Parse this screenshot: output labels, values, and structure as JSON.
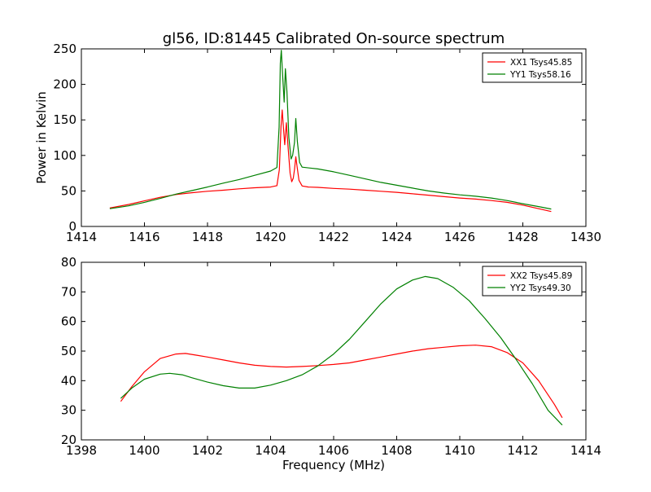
{
  "figure": {
    "title": "gl56, ID:81445 Calibrated On-source spectrum",
    "background": "#ffffff"
  },
  "chart_data": [
    {
      "type": "line",
      "title": "gl56, ID:81445 Calibrated On-source spectrum",
      "xlabel": "",
      "ylabel": "Power in Kelvin",
      "xlim": [
        1414,
        1430
      ],
      "ylim": [
        0,
        250
      ],
      "xticks": [
        1414,
        1416,
        1418,
        1420,
        1422,
        1424,
        1426,
        1428,
        1430
      ],
      "yticks": [
        0,
        50,
        100,
        150,
        200,
        250
      ],
      "grid": false,
      "legend_position": "top-right",
      "series": [
        {
          "name": "XX1 Tsys45.85",
          "color": "#ff0000",
          "points": [
            [
              1414.9,
              26
            ],
            [
              1415.5,
              31
            ],
            [
              1416.0,
              36
            ],
            [
              1416.5,
              41
            ],
            [
              1417.0,
              45
            ],
            [
              1417.5,
              47.5
            ],
            [
              1418.0,
              49.5
            ],
            [
              1418.5,
              51
            ],
            [
              1419.0,
              53
            ],
            [
              1419.5,
              54.5
            ],
            [
              1420.0,
              55.5
            ],
            [
              1420.2,
              57.5
            ],
            [
              1420.28,
              80
            ],
            [
              1420.33,
              140
            ],
            [
              1420.37,
              164
            ],
            [
              1420.41,
              138
            ],
            [
              1420.45,
              115
            ],
            [
              1420.5,
              146
            ],
            [
              1420.55,
              115
            ],
            [
              1420.62,
              75
            ],
            [
              1420.67,
              63
            ],
            [
              1420.72,
              68
            ],
            [
              1420.76,
              80
            ],
            [
              1420.8,
              98
            ],
            [
              1420.84,
              85
            ],
            [
              1420.9,
              65
            ],
            [
              1421.0,
              57
            ],
            [
              1421.2,
              55.5
            ],
            [
              1421.5,
              55
            ],
            [
              1422.0,
              53.5
            ],
            [
              1422.5,
              52.5
            ],
            [
              1423.0,
              51
            ],
            [
              1423.5,
              49.5
            ],
            [
              1424.0,
              48
            ],
            [
              1424.5,
              46
            ],
            [
              1425.0,
              44
            ],
            [
              1425.5,
              42
            ],
            [
              1426.0,
              40
            ],
            [
              1426.5,
              38.5
            ],
            [
              1427.0,
              36.5
            ],
            [
              1427.5,
              34
            ],
            [
              1428.0,
              30
            ],
            [
              1428.5,
              25
            ],
            [
              1428.9,
              21
            ]
          ]
        },
        {
          "name": "YY1 Tsys58.16",
          "color": "#008000",
          "points": [
            [
              1414.9,
              25
            ],
            [
              1415.5,
              29
            ],
            [
              1416.0,
              34
            ],
            [
              1416.5,
              39.5
            ],
            [
              1417.0,
              45.5
            ],
            [
              1417.5,
              50.5
            ],
            [
              1418.0,
              55.5
            ],
            [
              1418.5,
              61
            ],
            [
              1419.0,
              66
            ],
            [
              1419.5,
              72
            ],
            [
              1420.0,
              78
            ],
            [
              1420.2,
              83
            ],
            [
              1420.27,
              140
            ],
            [
              1420.31,
              230
            ],
            [
              1420.34,
              248
            ],
            [
              1420.38,
              215
            ],
            [
              1420.43,
              175
            ],
            [
              1420.47,
              222
            ],
            [
              1420.52,
              190
            ],
            [
              1420.58,
              125
            ],
            [
              1420.65,
              95
            ],
            [
              1420.7,
              100
            ],
            [
              1420.76,
              118
            ],
            [
              1420.8,
              152
            ],
            [
              1420.85,
              120
            ],
            [
              1420.92,
              90
            ],
            [
              1421.0,
              83.5
            ],
            [
              1421.5,
              81
            ],
            [
              1422.0,
              77
            ],
            [
              1422.5,
              72
            ],
            [
              1423.0,
              67
            ],
            [
              1423.5,
              62
            ],
            [
              1424.0,
              58
            ],
            [
              1424.5,
              54
            ],
            [
              1425.0,
              50
            ],
            [
              1425.5,
              47
            ],
            [
              1426.0,
              44.5
            ],
            [
              1426.5,
              42.5
            ],
            [
              1427.0,
              40
            ],
            [
              1427.5,
              36.5
            ],
            [
              1428.0,
              32
            ],
            [
              1428.5,
              28
            ],
            [
              1428.9,
              24.5
            ]
          ]
        }
      ]
    },
    {
      "type": "line",
      "title": "",
      "xlabel": "Frequency (MHz)",
      "ylabel": "",
      "xlim": [
        1398,
        1414
      ],
      "ylim": [
        20,
        80
      ],
      "xticks": [
        1398,
        1400,
        1402,
        1404,
        1406,
        1408,
        1410,
        1412,
        1414
      ],
      "yticks": [
        20,
        30,
        40,
        50,
        60,
        70,
        80
      ],
      "grid": false,
      "legend_position": "top-right",
      "series": [
        {
          "name": "XX2 Tsys45.89",
          "color": "#ff0000",
          "points": [
            [
              1399.25,
              33
            ],
            [
              1399.6,
              38
            ],
            [
              1400.0,
              43
            ],
            [
              1400.5,
              47.5
            ],
            [
              1401.0,
              49
            ],
            [
              1401.3,
              49.2
            ],
            [
              1401.7,
              48.5
            ],
            [
              1402.0,
              48
            ],
            [
              1402.5,
              47
            ],
            [
              1403.0,
              46
            ],
            [
              1403.5,
              45.2
            ],
            [
              1404.0,
              44.8
            ],
            [
              1404.5,
              44.6
            ],
            [
              1405.0,
              44.8
            ],
            [
              1405.5,
              45.1
            ],
            [
              1406.0,
              45.5
            ],
            [
              1406.5,
              46
            ],
            [
              1407.0,
              47
            ],
            [
              1407.5,
              48
            ],
            [
              1408.0,
              49
            ],
            [
              1408.5,
              50
            ],
            [
              1409.0,
              50.8
            ],
            [
              1409.5,
              51.3
            ],
            [
              1410.0,
              51.8
            ],
            [
              1410.5,
              52
            ],
            [
              1411.0,
              51.5
            ],
            [
              1411.5,
              49.5
            ],
            [
              1412.0,
              46
            ],
            [
              1412.5,
              40
            ],
            [
              1413.0,
              32
            ],
            [
              1413.25,
              27.5
            ]
          ]
        },
        {
          "name": "YY2 Tsys49.30",
          "color": "#008000",
          "points": [
            [
              1399.25,
              34
            ],
            [
              1399.6,
              37.5
            ],
            [
              1400.0,
              40.5
            ],
            [
              1400.5,
              42.2
            ],
            [
              1400.8,
              42.5
            ],
            [
              1401.2,
              42
            ],
            [
              1401.5,
              41
            ],
            [
              1402.0,
              39.5
            ],
            [
              1402.5,
              38.3
            ],
            [
              1403.0,
              37.5
            ],
            [
              1403.5,
              37.5
            ],
            [
              1404.0,
              38.5
            ],
            [
              1404.5,
              40
            ],
            [
              1405.0,
              42
            ],
            [
              1405.5,
              45
            ],
            [
              1406.0,
              49
            ],
            [
              1406.5,
              54
            ],
            [
              1407.0,
              60
            ],
            [
              1407.5,
              66
            ],
            [
              1408.0,
              71
            ],
            [
              1408.5,
              74
            ],
            [
              1408.9,
              75.2
            ],
            [
              1409.3,
              74.5
            ],
            [
              1409.8,
              71.5
            ],
            [
              1410.3,
              67
            ],
            [
              1410.8,
              61
            ],
            [
              1411.3,
              54.5
            ],
            [
              1411.8,
              47
            ],
            [
              1412.3,
              39
            ],
            [
              1412.8,
              30
            ],
            [
              1413.25,
              25
            ]
          ]
        }
      ]
    }
  ]
}
